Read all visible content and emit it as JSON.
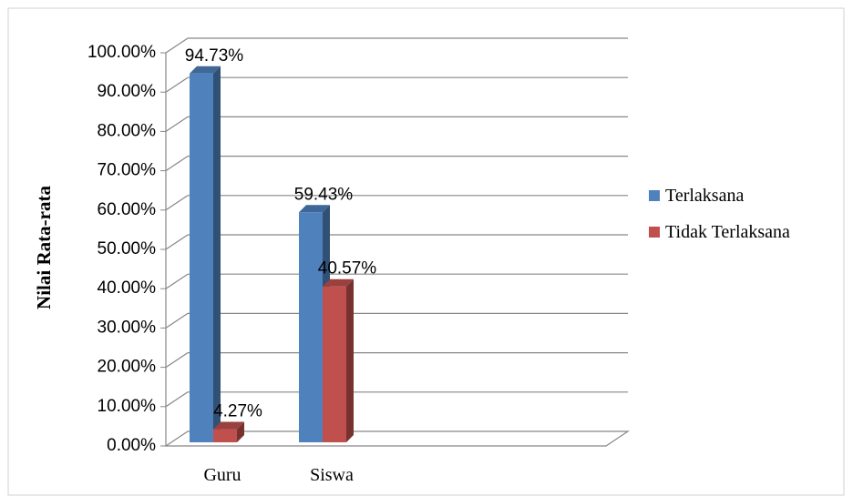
{
  "chart_data": {
    "type": "bar",
    "title": "",
    "xlabel": "",
    "ylabel": "Nilai Rata-rata",
    "categories": [
      "Guru",
      "Siswa"
    ],
    "series": [
      {
        "name": "Terlaksana",
        "values": [
          94.73,
          59.43
        ],
        "labels": [
          "94.73%",
          "59.43%"
        ],
        "color": "#4f81bd"
      },
      {
        "name": "Tidak Terlaksana",
        "values": [
          4.27,
          40.57
        ],
        "labels": [
          "4.27%",
          "40.57%"
        ],
        "color": "#c0504d"
      }
    ],
    "ylim": [
      0,
      100
    ],
    "yticks": [
      "0.00%",
      "10.00%",
      "20.00%",
      "30.00%",
      "40.00%",
      "50.00%",
      "60.00%",
      "70.00%",
      "80.00%",
      "90.00%",
      "100.00%"
    ],
    "grid": true,
    "legend_position": "right",
    "style": "3d-column"
  }
}
